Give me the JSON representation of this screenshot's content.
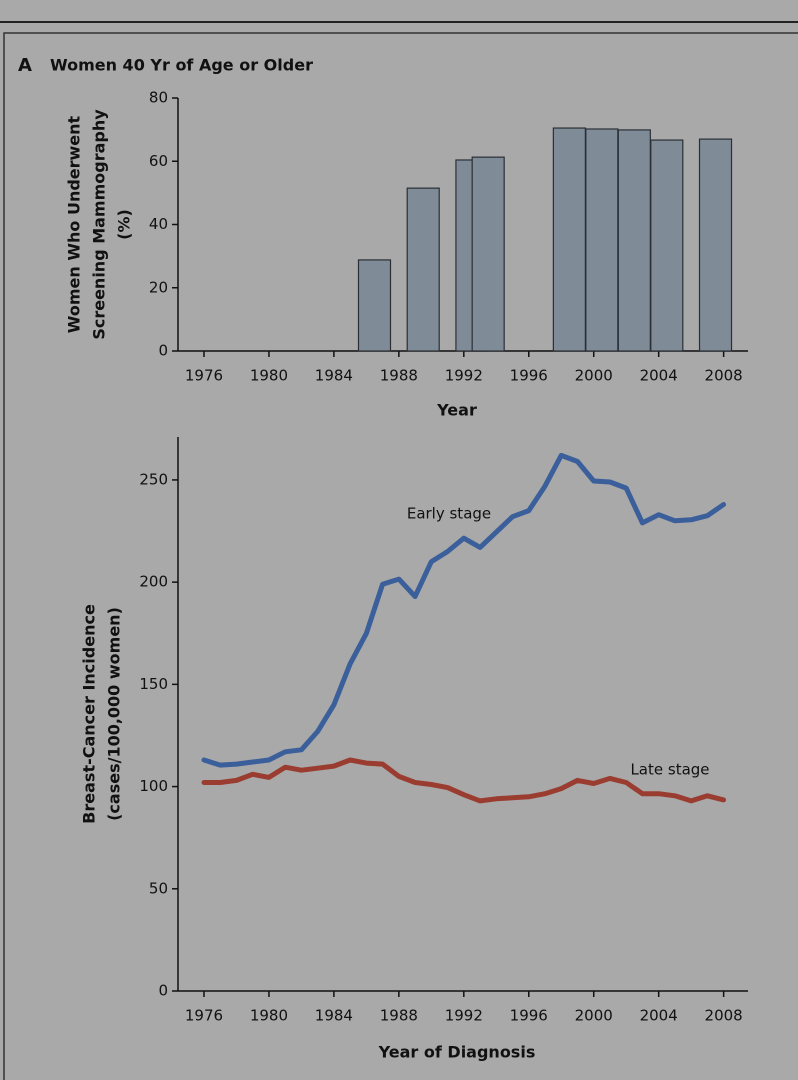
{
  "panel_label": "A",
  "chart_data": [
    {
      "type": "bar",
      "title": "Women 40 Yr of Age or Older",
      "x": [
        1986.5,
        1989.5,
        1992.5,
        1993.5,
        1998.5,
        2000.5,
        2002.5,
        2004.5,
        2007.5
      ],
      "values": [
        28.8,
        51.5,
        60.4,
        61.3,
        70.5,
        70.2,
        69.9,
        66.7,
        67.0
      ],
      "color": "#7f8b97",
      "xlim": [
        1974.4,
        2009.5
      ],
      "xticks": [
        1976,
        1980,
        1984,
        1988,
        1992,
        1996,
        2000,
        2004,
        2008
      ],
      "ylim": [
        0,
        80
      ],
      "yticks": [
        0,
        20,
        40,
        60,
        80
      ],
      "xlabel": "Year",
      "ylabel": [
        "Women Who Underwent",
        "Screening Mammography",
        "(%)"
      ]
    },
    {
      "type": "line",
      "x": [
        1976,
        1977,
        1978,
        1979,
        1980,
        1981,
        1982,
        1983,
        1984,
        1985,
        1986,
        1987,
        1988,
        1989,
        1990,
        1991,
        1992,
        1993,
        1994,
        1995,
        1996,
        1997,
        1998,
        1999,
        2000,
        2001,
        2002,
        2003,
        2004,
        2005,
        2006,
        2007,
        2008
      ],
      "series": [
        {
          "name": "Early stage",
          "color": "#3b5f9b",
          "values": [
            113,
            110.5,
            111,
            112,
            113,
            117,
            118,
            127,
            140,
            160,
            175,
            199,
            201.5,
            193,
            210,
            215,
            221.5,
            217,
            224.5,
            232,
            235,
            247,
            262,
            259,
            249.5,
            249,
            246,
            229,
            233,
            230,
            230.5,
            232.5,
            238
          ]
        },
        {
          "name": "Late stage",
          "color": "#9a3d30",
          "values": [
            102,
            102,
            103,
            106,
            104.5,
            109.5,
            108,
            109,
            110,
            113,
            111.5,
            111,
            105,
            102,
            101,
            99.5,
            96,
            93,
            94,
            94.5,
            95,
            96.5,
            99,
            103,
            101.5,
            104,
            102,
            96.5,
            96.5,
            95.5,
            93,
            95.5,
            93.5
          ]
        }
      ],
      "xlim": [
        1974.4,
        2009.5
      ],
      "xticks": [
        1976,
        1980,
        1984,
        1988,
        1992,
        1996,
        2000,
        2004,
        2008
      ],
      "ylim": [
        0,
        271
      ],
      "yticks": [
        0,
        50,
        100,
        150,
        200,
        250
      ],
      "xlabel": "Year of Diagnosis",
      "ylabel": [
        "Breast-Cancer Incidence",
        "(cases/100,000 women)"
      ]
    }
  ]
}
